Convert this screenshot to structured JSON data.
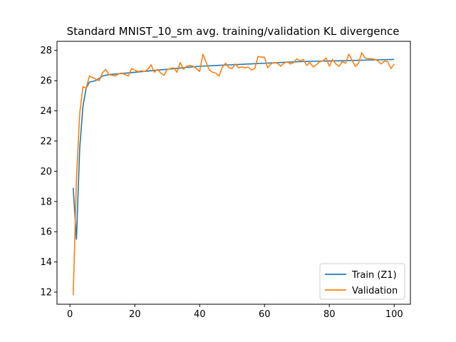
{
  "chart_data": {
    "type": "line",
    "title": "Standard MNIST_10_sm avg. training/validation KL divergence",
    "xlabel": "",
    "ylabel": "",
    "xlim": [
      -4,
      105
    ],
    "ylim": [
      11.2,
      28.6
    ],
    "xticks": [
      0,
      20,
      40,
      60,
      80,
      100
    ],
    "yticks": [
      12,
      14,
      16,
      18,
      20,
      22,
      24,
      26,
      28
    ],
    "grid": false,
    "legend_position": "lower-right",
    "series": [
      {
        "name": "Train (Z1)",
        "color": "#1f77b4",
        "x": [
          1,
          2,
          3,
          4,
          5,
          6,
          8,
          10,
          12,
          15,
          20,
          25,
          30,
          35,
          40,
          45,
          50,
          55,
          60,
          65,
          70,
          75,
          80,
          85,
          90,
          95,
          100
        ],
        "y": [
          18.9,
          15.5,
          21.5,
          24.3,
          25.5,
          25.9,
          26.0,
          26.3,
          26.4,
          26.45,
          26.55,
          26.65,
          26.75,
          26.85,
          26.95,
          27.0,
          27.05,
          27.1,
          27.15,
          27.2,
          27.25,
          27.28,
          27.3,
          27.32,
          27.35,
          27.38,
          27.4
        ]
      },
      {
        "name": "Validation",
        "color": "#ff7f0e",
        "x": [
          1,
          2,
          3,
          4,
          5,
          6,
          7,
          8,
          9,
          10,
          11,
          12,
          13,
          14,
          15,
          16,
          17,
          18,
          19,
          20,
          21,
          22,
          23,
          24,
          25,
          26,
          27,
          28,
          29,
          30,
          31,
          32,
          33,
          34,
          35,
          36,
          37,
          38,
          39,
          40,
          41,
          42,
          43,
          44,
          45,
          46,
          47,
          48,
          49,
          50,
          51,
          52,
          53,
          54,
          55,
          56,
          57,
          58,
          59,
          60,
          61,
          62,
          63,
          64,
          65,
          66,
          67,
          68,
          69,
          70,
          71,
          72,
          73,
          74,
          75,
          76,
          77,
          78,
          79,
          80,
          81,
          82,
          83,
          84,
          85,
          86,
          87,
          88,
          89,
          90,
          91,
          92,
          93,
          94,
          95,
          96,
          97,
          98,
          99,
          100
        ],
        "y": [
          11.8,
          19.5,
          23.8,
          25.6,
          25.5,
          26.3,
          26.2,
          26.1,
          26.0,
          26.5,
          26.75,
          26.4,
          26.35,
          26.3,
          26.45,
          26.5,
          26.4,
          26.3,
          26.8,
          26.7,
          26.6,
          26.65,
          26.6,
          26.75,
          27.05,
          26.55,
          26.75,
          26.5,
          26.35,
          26.75,
          26.8,
          26.85,
          26.55,
          27.2,
          26.75,
          26.95,
          27.0,
          26.95,
          26.8,
          26.6,
          27.75,
          27.2,
          26.7,
          26.55,
          26.5,
          26.3,
          26.9,
          27.15,
          26.85,
          26.8,
          27.1,
          26.85,
          26.9,
          26.85,
          26.9,
          26.7,
          26.8,
          27.6,
          27.55,
          27.55,
          26.85,
          27.1,
          27.2,
          27.15,
          26.95,
          27.15,
          27.25,
          27.1,
          27.2,
          27.45,
          27.3,
          27.4,
          27.0,
          27.2,
          26.9,
          27.05,
          27.25,
          27.3,
          27.5,
          26.95,
          27.4,
          27.1,
          26.95,
          27.25,
          27.15,
          27.75,
          27.35,
          26.95,
          27.15,
          27.85,
          27.5,
          27.45,
          27.45,
          27.4,
          27.3,
          27.1,
          27.3,
          27.25,
          26.8,
          27.1
        ]
      }
    ]
  }
}
